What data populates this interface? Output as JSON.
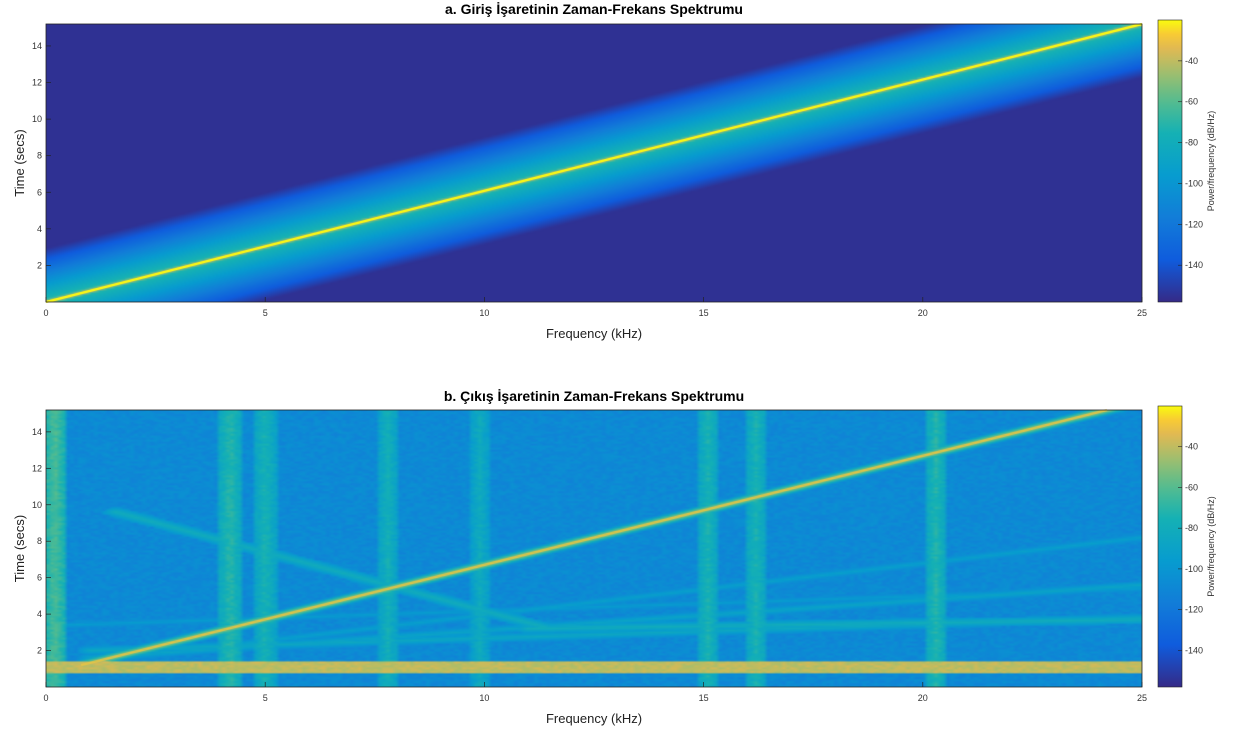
{
  "chart_data": [
    {
      "type": "heatmap",
      "title": "a. Giriş İşaretinin Zaman-Frekans Spektrumu",
      "xlabel": "Frequency (kHz)",
      "ylabel": "Time (secs)",
      "xlim": [
        0,
        25
      ],
      "ylim": [
        0,
        15.2
      ],
      "xticks": [
        0,
        5,
        10,
        15,
        20,
        25
      ],
      "yticks": [
        2,
        4,
        6,
        8,
        10,
        12,
        14
      ],
      "colorbar": {
        "label": "Power/frequency (dB/Hz)",
        "ticks": [
          -40,
          -60,
          -80,
          -100,
          -120,
          -140
        ],
        "range": [
          -158,
          -20
        ]
      },
      "background_db": -155,
      "chirp": {
        "f_start_khz": 0,
        "t_start_s": 0,
        "f_end_khz": 25,
        "t_end_s": 15.2,
        "peak_db": -22
      },
      "bands": [],
      "vertical_lines": [],
      "extra_lines": []
    },
    {
      "type": "heatmap",
      "title": "b. Çıkış İşaretinin Zaman-Frekans Spektrumu",
      "xlabel": "Frequency (kHz)",
      "ylabel": "Time (secs)",
      "xlim": [
        0,
        25
      ],
      "ylim": [
        0,
        15.2
      ],
      "xticks": [
        0,
        5,
        10,
        15,
        20,
        25
      ],
      "yticks": [
        2,
        4,
        6,
        8,
        10,
        12,
        14
      ],
      "colorbar": {
        "label": "Power/frequency (dB/Hz)",
        "ticks": [
          -40,
          -60,
          -80,
          -100,
          -120,
          -140
        ],
        "range": [
          -158,
          -20
        ]
      },
      "background_db": -108,
      "chirp": {
        "f_start_khz": 0.8,
        "t_start_s": 1.2,
        "f_end_khz": 24.2,
        "t_end_s": 15.2,
        "peak_db": -35
      },
      "bands": [
        {
          "t_start_s": 0.8,
          "t_end_s": 1.4,
          "db": -40
        }
      ],
      "vertical_lines": [
        {
          "f_khz": 0.2,
          "db": -62
        },
        {
          "f_khz": 4.2,
          "db": -70
        },
        {
          "f_khz": 5.0,
          "db": -75
        },
        {
          "f_khz": 7.8,
          "db": -78
        },
        {
          "f_khz": 9.9,
          "db": -82
        },
        {
          "f_khz": 15.1,
          "db": -75
        },
        {
          "f_khz": 16.2,
          "db": -75
        },
        {
          "f_khz": 20.3,
          "db": -72
        }
      ],
      "extra_lines": [
        {
          "f0": 1.6,
          "t0": 9.6,
          "f1": 11.5,
          "t1": 3.2,
          "db": -80
        },
        {
          "f0": 1.0,
          "t0": 2.0,
          "f1": 25.0,
          "t1": 3.8,
          "db": -85
        },
        {
          "f0": 1.0,
          "t0": 1.6,
          "f1": 25.0,
          "t1": 5.6,
          "db": -88
        },
        {
          "f0": 1.0,
          "t0": 1.4,
          "f1": 25.0,
          "t1": 8.2,
          "db": -92
        },
        {
          "f0": 0.5,
          "t0": 3.4,
          "f1": 25.0,
          "t1": 5.4,
          "db": -95
        },
        {
          "f0": 11.0,
          "t0": 3.2,
          "f1": 25.0,
          "t1": 3.7,
          "db": -80
        }
      ]
    }
  ]
}
